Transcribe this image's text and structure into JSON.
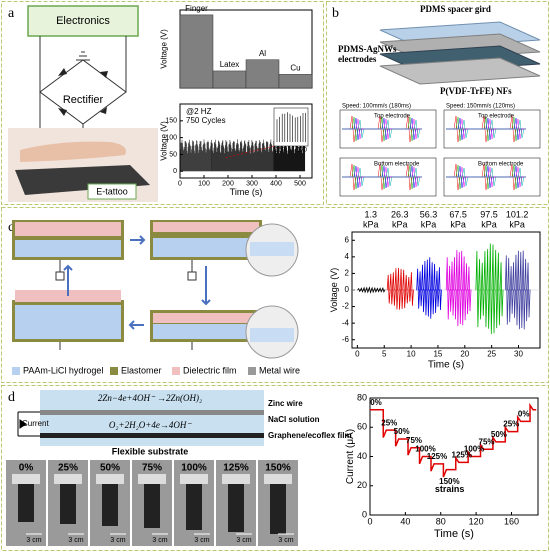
{
  "panels": {
    "a": {
      "label": "a",
      "electronics": "Electronics",
      "rectifier": "Rectifier",
      "etattoo": "E-tattoo"
    },
    "b": {
      "label": "b",
      "layers": [
        "PDMS spacer gird",
        "PDMS-AgNWs",
        "electrodes",
        "P(VDF-TrFE) NFs"
      ],
      "plots": [
        {
          "speed": "Speed: 100mm/s (180ms)",
          "electrode": "Top electrode"
        },
        {
          "speed": "Speed: 150mm/s (120ms)",
          "electrode": "Top electrode"
        },
        {
          "electrode": "Bottom electrode"
        },
        {
          "electrode": "Bottom electrode"
        }
      ]
    },
    "c": {
      "label": "c",
      "legend": [
        "PAAm-LiCl hydrogel",
        "Elastomer",
        "Dielectric film",
        "Metal wire"
      ]
    },
    "d": {
      "label": "d",
      "eq1": "2Zn−4e+4OH⁻ →2Zn(OH)₂",
      "eq2": "O₂+2H₂O+4e→4OH⁻",
      "current": "Current",
      "zinc": "Zinc wire",
      "nacl": "NaCl solution",
      "film": "Graphene/ecoflex film",
      "substrate": "Flexible substrate",
      "photos": [
        "0%",
        "25%",
        "50%",
        "75%",
        "100%",
        "125%",
        "150%"
      ],
      "scale": "3 cm"
    }
  },
  "chart_data": [
    {
      "type": "bar",
      "ylabel": "Voltage (V)",
      "categories": [
        "Finger",
        "Latex",
        "Al",
        "Cu"
      ],
      "values": [
        150,
        35,
        58,
        28
      ],
      "color": "#808080",
      "ylim": [
        0,
        160
      ]
    },
    {
      "type": "band",
      "xlabel": "Time (s)",
      "ylabel": "Voltage (V)",
      "texts": [
        "@2 HZ",
        "750 Cycles"
      ],
      "xlim": [
        0,
        550
      ],
      "xticks": [
        0,
        100,
        200,
        300,
        400,
        500
      ],
      "ylim": [
        -20,
        200
      ],
      "yticks": [
        0,
        50,
        100,
        150
      ],
      "series": [
        {
          "color": "#000000",
          "x": [
            0,
            520
          ],
          "values": [
            95,
            95
          ]
        }
      ],
      "inset_xticks": [
        160,
        170
      ]
    },
    {
      "type": "pulse",
      "xlabel": "Time (s)",
      "ylabel": "Voltage (V)",
      "unit": "kPa",
      "xlim": [
        -1,
        34
      ],
      "xticks": [
        0,
        5,
        10,
        15,
        20,
        25,
        30
      ],
      "ylim": [
        -7,
        7
      ],
      "yticks": [
        -6,
        -4,
        -2,
        0,
        2,
        4,
        6
      ],
      "series": [
        {
          "name": "1.3",
          "color": "#000000",
          "x": [
            0,
            5
          ],
          "values": [
            -0.3,
            0.3
          ]
        },
        {
          "name": "26.3",
          "color": "#e00000",
          "x": [
            5.5,
            10.3
          ],
          "values": [
            -2.5,
            2.8
          ]
        },
        {
          "name": "56.3",
          "color": "#0000e0",
          "x": [
            11,
            15.5
          ],
          "values": [
            -3.5,
            4
          ]
        },
        {
          "name": "67.5",
          "color": "#e000e0",
          "x": [
            16.5,
            21
          ],
          "values": [
            -4.5,
            5
          ]
        },
        {
          "name": "97.5",
          "color": "#00b000",
          "x": [
            22,
            27
          ],
          "values": [
            -5.5,
            5.8
          ]
        },
        {
          "name": "101.2",
          "color": "#4040a0",
          "x": [
            27.5,
            32
          ],
          "values": [
            -5,
            5
          ]
        }
      ]
    },
    {
      "type": "step",
      "xlabel": "Time (s)",
      "ylabel": "Current (μA)",
      "annotation": "strains",
      "xlim": [
        0,
        190
      ],
      "xticks": [
        0,
        40,
        80,
        120,
        160
      ],
      "ylim": [
        0,
        80
      ],
      "yticks": [
        0,
        20,
        40,
        60,
        80
      ],
      "color": "#e00000",
      "x": [
        0,
        15,
        29,
        43,
        56,
        69,
        83,
        97,
        111,
        125,
        139,
        153,
        167,
        181
      ],
      "values": [
        72,
        58,
        52,
        46,
        40,
        35,
        31,
        36,
        40,
        45,
        50,
        57,
        64,
        72
      ],
      "point_labels": [
        "0%",
        "25%",
        "50%",
        "75%",
        "100%",
        "125%",
        "150%",
        "125%",
        "100%",
        "75%",
        "50%",
        "25%",
        "0%",
        null
      ]
    }
  ]
}
